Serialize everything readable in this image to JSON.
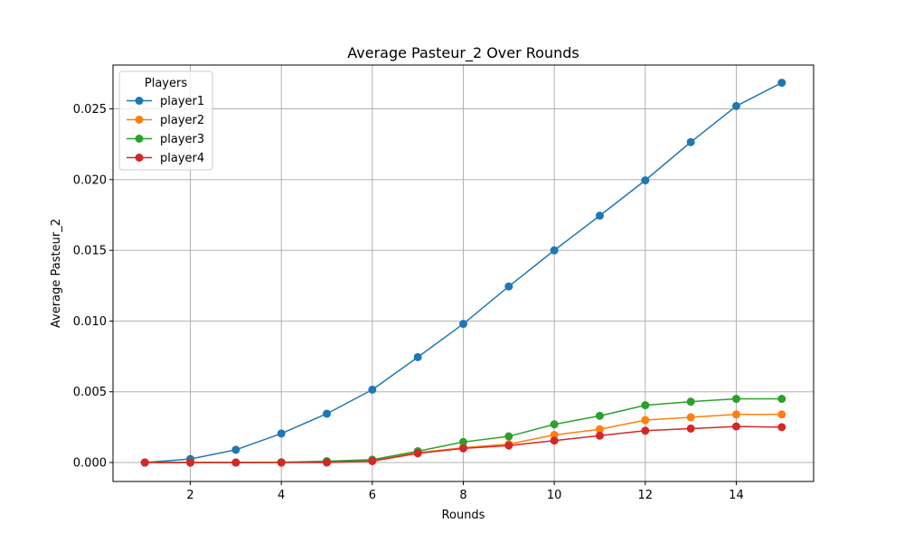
{
  "chart_data": {
    "type": "line",
    "title": "Average Pasteur_2 Over Rounds",
    "xlabel": "Rounds",
    "ylabel": "Average Pasteur_2",
    "xlim": [
      0.3,
      15.7
    ],
    "ylim": [
      -0.00134,
      0.0281
    ],
    "xticks": [
      2,
      4,
      6,
      8,
      10,
      12,
      14
    ],
    "xtick_labels": [
      "2",
      "4",
      "6",
      "8",
      "10",
      "12",
      "14"
    ],
    "yticks": [
      0.0,
      0.005,
      0.01,
      0.015,
      0.02,
      0.025
    ],
    "ytick_labels": [
      "0.000",
      "0.005",
      "0.010",
      "0.015",
      "0.020",
      "0.025"
    ],
    "grid": true,
    "legend": {
      "title": "Players",
      "position": "top-left"
    },
    "x": [
      1,
      2,
      3,
      4,
      5,
      6,
      7,
      8,
      9,
      10,
      11,
      12,
      13,
      14,
      15
    ],
    "series": [
      {
        "name": "player1",
        "color": "#1f77b4",
        "values": [
          0.0,
          0.00025,
          0.0009,
          0.00205,
          0.00345,
          0.00515,
          0.00745,
          0.0098,
          0.01245,
          0.015,
          0.01745,
          0.01995,
          0.02265,
          0.0252,
          0.02685
        ]
      },
      {
        "name": "player2",
        "color": "#ff7f0e",
        "values": [
          0.0,
          0.0,
          0.0,
          0.0,
          5e-05,
          0.00015,
          0.0007,
          0.00105,
          0.0013,
          0.00195,
          0.00235,
          0.003,
          0.0032,
          0.0034,
          0.0034
        ]
      },
      {
        "name": "player3",
        "color": "#2ca02c",
        "values": [
          0.0,
          0.0,
          0.0,
          2e-05,
          0.0001,
          0.0002,
          0.0008,
          0.00145,
          0.00185,
          0.0027,
          0.0033,
          0.00405,
          0.0043,
          0.0045,
          0.0045
        ]
      },
      {
        "name": "player4",
        "color": "#d62728",
        "values": [
          0.0,
          0.0,
          0.0,
          0.0,
          0.0,
          0.0001,
          0.00065,
          0.001,
          0.0012,
          0.00155,
          0.0019,
          0.00225,
          0.0024,
          0.00255,
          0.0025
        ]
      }
    ]
  }
}
